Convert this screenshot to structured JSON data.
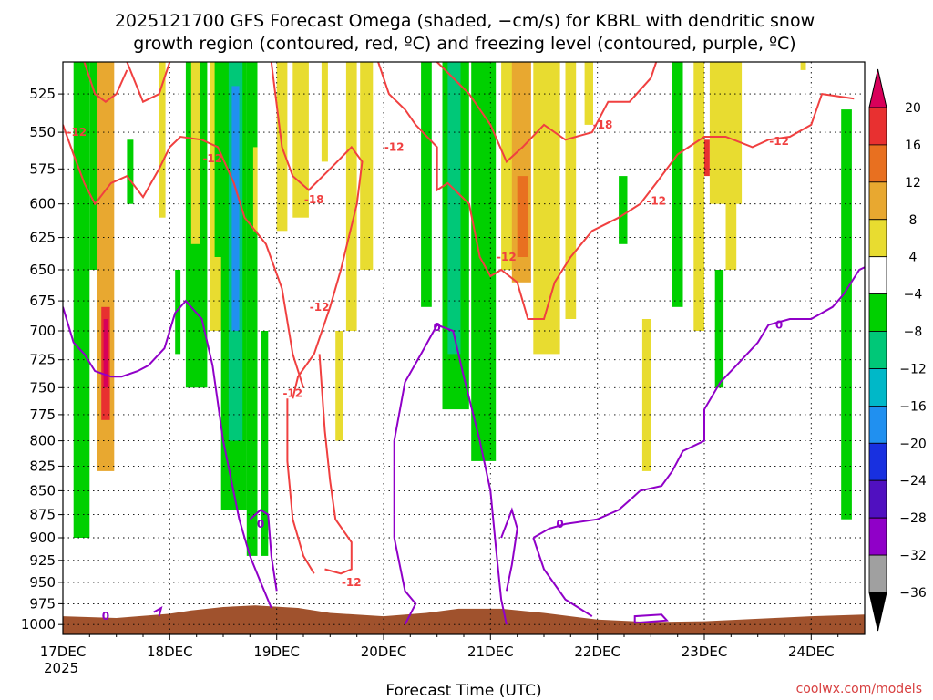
{
  "chart_data": {
    "type": "heatmap",
    "title_line1": "2025121700 GFS Forecast Omega (shaded, −cm/s) for KBRL with dendritic snow",
    "title_line2": "growth region (contoured, red, ºC) and freezing level (contoured, purple, ºC)",
    "xlabel": "Forecast Time (UTC)",
    "credit": "coolwx.com/models",
    "x_ticks": [
      {
        "label": "17DEC",
        "day": 0
      },
      {
        "label": "18DEC",
        "day": 1
      },
      {
        "label": "19DEC",
        "day": 2
      },
      {
        "label": "20DEC",
        "day": 3
      },
      {
        "label": "21DEC",
        "day": 4
      },
      {
        "label": "22DEC",
        "day": 5
      },
      {
        "label": "23DEC",
        "day": 6
      },
      {
        "label": "24DEC",
        "day": 7
      }
    ],
    "x_year_label": "2025",
    "xlim_days": [
      0,
      7.5
    ],
    "y_levels_hpa": [
      525,
      550,
      575,
      600,
      625,
      650,
      675,
      700,
      725,
      750,
      775,
      800,
      825,
      850,
      875,
      900,
      925,
      950,
      975,
      1000
    ],
    "ylim_hpa": [
      1012,
      505
    ],
    "y_scale": "log-pressure",
    "grid": true,
    "colorbar": {
      "labels": [
        "20",
        "16",
        "12",
        "8",
        "4",
        "−4",
        "−8",
        "−12",
        "−16",
        "−20",
        "−24",
        "−28",
        "−32",
        "−36"
      ],
      "colors": [
        "#d8005a",
        "#e83030",
        "#e87020",
        "#e8a830",
        "#e8dc30",
        "#ffffff",
        "#00d000",
        "#00c878",
        "#00b8c8",
        "#2090f0",
        "#1830e0",
        "#5010c0",
        "#9000c8",
        "#a0a0a0",
        "#000000"
      ]
    },
    "contours": {
      "dgz_color": "#f04040",
      "freezing_color": "#9000c8",
      "dgz_labels": [
        "-12",
        "-12",
        "-18",
        "-12",
        "-12",
        "-12",
        "-12",
        "-12",
        "-18",
        "-12",
        "-12"
      ],
      "freezing_labels": [
        "0",
        "0",
        "0",
        "0",
        "0"
      ]
    },
    "terrain_color": "#a0522d"
  }
}
